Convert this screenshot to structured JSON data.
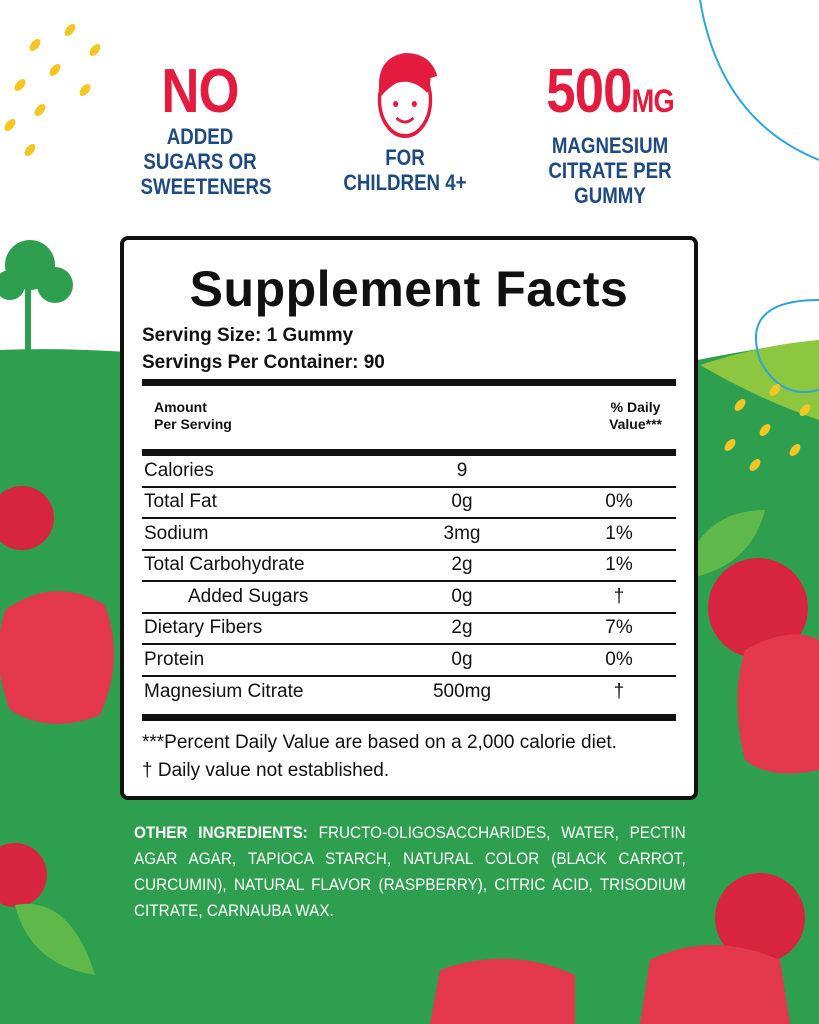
{
  "colors": {
    "accent_red": "#e31b3f",
    "navy": "#1f4a7f",
    "green": "#2e9e4f"
  },
  "features": [
    {
      "headline": "NO",
      "lines": [
        "ADDED",
        "SUGARS OR",
        "SWEETENERS"
      ]
    },
    {
      "icon": "child-face-icon",
      "lines": [
        "FOR",
        "CHILDREN 4+"
      ]
    },
    {
      "headline": "500",
      "headline_unit": "MG",
      "lines": [
        "MAGNESIUM",
        "CITRATE PER",
        "GUMMY"
      ]
    }
  ],
  "facts": {
    "title": "Supplement Facts",
    "serving_size": "Serving Size: 1 Gummy",
    "servings_per_container": "Servings Per Container: 90",
    "header_left": [
      "Amount",
      "Per Serving"
    ],
    "header_right": [
      "% Daily",
      "Value***"
    ],
    "rows": [
      {
        "name": "Calories",
        "amount": "9",
        "dv": ""
      },
      {
        "name": "Total Fat",
        "amount": "0g",
        "dv": "0%"
      },
      {
        "name": "Sodium",
        "amount": "3mg",
        "dv": "1%"
      },
      {
        "name": "Total Carbohydrate",
        "amount": "2g",
        "dv": "1%"
      },
      {
        "name": "Added Sugars",
        "amount": "0g",
        "dv": "†"
      },
      {
        "name": "Dietary Fibers",
        "amount": "2g",
        "dv": "7%"
      },
      {
        "name": "Protein",
        "amount": "0g",
        "dv": "0%"
      },
      {
        "name": "Magnesium Citrate",
        "amount": "500mg",
        "dv": "†"
      }
    ],
    "footnotes": [
      "***Percent Daily Value  are based on a 2,000 calorie diet.",
      "† Daily value not established."
    ]
  },
  "ingredients": {
    "label": "OTHER INGREDIENTS:",
    "text": "FRUCTO-OLIGOSACCHARIDES, WATER, PECTIN AGAR AGAR, TAPIOCA STARCH, NATURAL COLOR (BLACK CARROT, CURCUMIN), NATURAL FLAVOR (RASPBERRY), CITRIC ACID, TRISODIUM CITRATE, CARNAUBA WAX."
  }
}
